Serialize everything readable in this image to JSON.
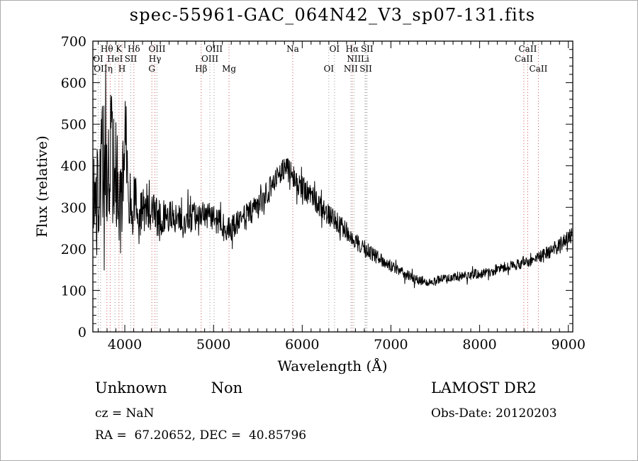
{
  "footer": {
    "class": "Unknown",
    "subclass": "Non",
    "survey": "LAMOST DR2",
    "cz": "cz = NaN",
    "obs_date": "Obs-Date: 20120203",
    "ra_dec": "RA =  67.20652, DEC =  40.85796"
  },
  "chart_data": {
    "type": "line",
    "title": "spec-55961-GAC_064N42_V3_sp07-131.fits",
    "xlabel": "Wavelength (Å)",
    "ylabel": "Flux (relative)",
    "xlim": [
      3640,
      9050
    ],
    "ylim": [
      0,
      700
    ],
    "xticks": [
      4000,
      5000,
      6000,
      7000,
      8000,
      9000
    ],
    "yticks": [
      0,
      100,
      200,
      300,
      400,
      500,
      600,
      700
    ],
    "x_minor_step": 100,
    "y_minor_step": 20,
    "grid": false,
    "line_color": "#000000",
    "marker_colors": {
      "red": "#cc5555",
      "gray": "#999999"
    },
    "spectral_lines": [
      {
        "label": "Hθ",
        "wl": 3798,
        "row": 1,
        "color": "red"
      },
      {
        "label": "K",
        "wl": 3934,
        "row": 1,
        "color": "red"
      },
      {
        "label": "Hδ",
        "wl": 4102,
        "row": 1,
        "color": "red"
      },
      {
        "label": "OIII",
        "wl": 4363,
        "row": 1,
        "color": "gray"
      },
      {
        "label": "OIII",
        "wl": 5007,
        "row": 1,
        "color": "gray"
      },
      {
        "label": "Na",
        "wl": 5893,
        "row": 1,
        "color": "red"
      },
      {
        "label": "OI",
        "wl": 6364,
        "row": 1,
        "color": "gray"
      },
      {
        "label": "Hα",
        "wl": 6563,
        "row": 1,
        "color": "red"
      },
      {
        "label": "SII",
        "wl": 6731,
        "row": 1,
        "color": "gray"
      },
      {
        "label": "CaII",
        "wl": 8542,
        "row": 1,
        "color": "red"
      },
      {
        "label": "OI",
        "wl": 3700,
        "row": 2,
        "color": "gray"
      },
      {
        "label": "HeI",
        "wl": 3889,
        "row": 2,
        "color": "gray"
      },
      {
        "label": "SII",
        "wl": 4068,
        "row": 2,
        "color": "gray"
      },
      {
        "label": "Hγ",
        "wl": 4340,
        "row": 2,
        "color": "red"
      },
      {
        "label": "OIII",
        "wl": 4959,
        "row": 2,
        "color": "gray"
      },
      {
        "label": "NII",
        "wl": 6583,
        "row": 2,
        "color": "gray"
      },
      {
        "label": "Li",
        "wl": 6708,
        "row": 2,
        "color": "gray"
      },
      {
        "label": "CaII",
        "wl": 8498,
        "row": 2,
        "color": "red"
      },
      {
        "label": "OII",
        "wl": 3727,
        "row": 3,
        "color": "gray"
      },
      {
        "label": "η",
        "wl": 3835,
        "row": 3,
        "color": "red"
      },
      {
        "label": "H",
        "wl": 3969,
        "row": 3,
        "color": "red"
      },
      {
        "label": "G",
        "wl": 4305,
        "row": 3,
        "color": "red"
      },
      {
        "label": "Hβ",
        "wl": 4861,
        "row": 3,
        "color": "red"
      },
      {
        "label": "Mg",
        "wl": 5175,
        "row": 3,
        "color": "red"
      },
      {
        "label": "OI",
        "wl": 6300,
        "row": 3,
        "color": "gray"
      },
      {
        "label": "NII",
        "wl": 6548,
        "row": 3,
        "color": "gray"
      },
      {
        "label": "SII",
        "wl": 6717,
        "row": 3,
        "color": "gray"
      },
      {
        "label": "CaII",
        "wl": 8662,
        "row": 3,
        "color": "red"
      }
    ],
    "continuum": [
      [
        3640,
        310
      ],
      [
        3700,
        330
      ],
      [
        3740,
        390
      ],
      [
        3780,
        430
      ],
      [
        3810,
        370
      ],
      [
        3840,
        430
      ],
      [
        3870,
        390
      ],
      [
        3900,
        400
      ],
      [
        3930,
        330
      ],
      [
        3960,
        250
      ],
      [
        3990,
        470
      ],
      [
        4010,
        450
      ],
      [
        4040,
        360
      ],
      [
        4080,
        290
      ],
      [
        4120,
        310
      ],
      [
        4160,
        265
      ],
      [
        4200,
        295
      ],
      [
        4260,
        305
      ],
      [
        4320,
        285
      ],
      [
        4400,
        272
      ],
      [
        4500,
        282
      ],
      [
        4600,
        268
      ],
      [
        4700,
        272
      ],
      [
        4800,
        277
      ],
      [
        4900,
        282
      ],
      [
        5000,
        272
      ],
      [
        5100,
        257
      ],
      [
        5200,
        247
      ],
      [
        5300,
        267
      ],
      [
        5400,
        282
      ],
      [
        5500,
        302
      ],
      [
        5600,
        332
      ],
      [
        5700,
        368
      ],
      [
        5780,
        392
      ],
      [
        5850,
        388
      ],
      [
        5900,
        372
      ],
      [
        6000,
        348
      ],
      [
        6100,
        327
      ],
      [
        6200,
        303
      ],
      [
        6300,
        282
      ],
      [
        6400,
        262
      ],
      [
        6500,
        242
      ],
      [
        6600,
        217
      ],
      [
        6700,
        202
      ],
      [
        6800,
        187
      ],
      [
        6900,
        172
      ],
      [
        7000,
        159
      ],
      [
        7100,
        146
      ],
      [
        7200,
        134
      ],
      [
        7300,
        126
      ],
      [
        7400,
        121
      ],
      [
        7500,
        123
      ],
      [
        7600,
        127
      ],
      [
        7700,
        131
      ],
      [
        7800,
        135
      ],
      [
        8000,
        141
      ],
      [
        8200,
        151
      ],
      [
        8400,
        161
      ],
      [
        8600,
        173
      ],
      [
        8800,
        193
      ],
      [
        8950,
        218
      ],
      [
        9050,
        235
      ]
    ],
    "noise_amplitude": [
      [
        3640,
        150
      ],
      [
        3750,
        155
      ],
      [
        3850,
        145
      ],
      [
        3950,
        135
      ],
      [
        4000,
        115
      ],
      [
        4100,
        75
      ],
      [
        4200,
        58
      ],
      [
        4400,
        42
      ],
      [
        4700,
        36
      ],
      [
        5000,
        33
      ],
      [
        5500,
        31
      ],
      [
        5800,
        29
      ],
      [
        6000,
        29
      ],
      [
        6300,
        26
      ],
      [
        6600,
        21
      ],
      [
        7000,
        14
      ],
      [
        7400,
        11
      ],
      [
        7800,
        12
      ],
      [
        8200,
        13
      ],
      [
        8600,
        15
      ],
      [
        9050,
        19
      ]
    ],
    "sampling_step": 4,
    "seed": 20120203
  }
}
